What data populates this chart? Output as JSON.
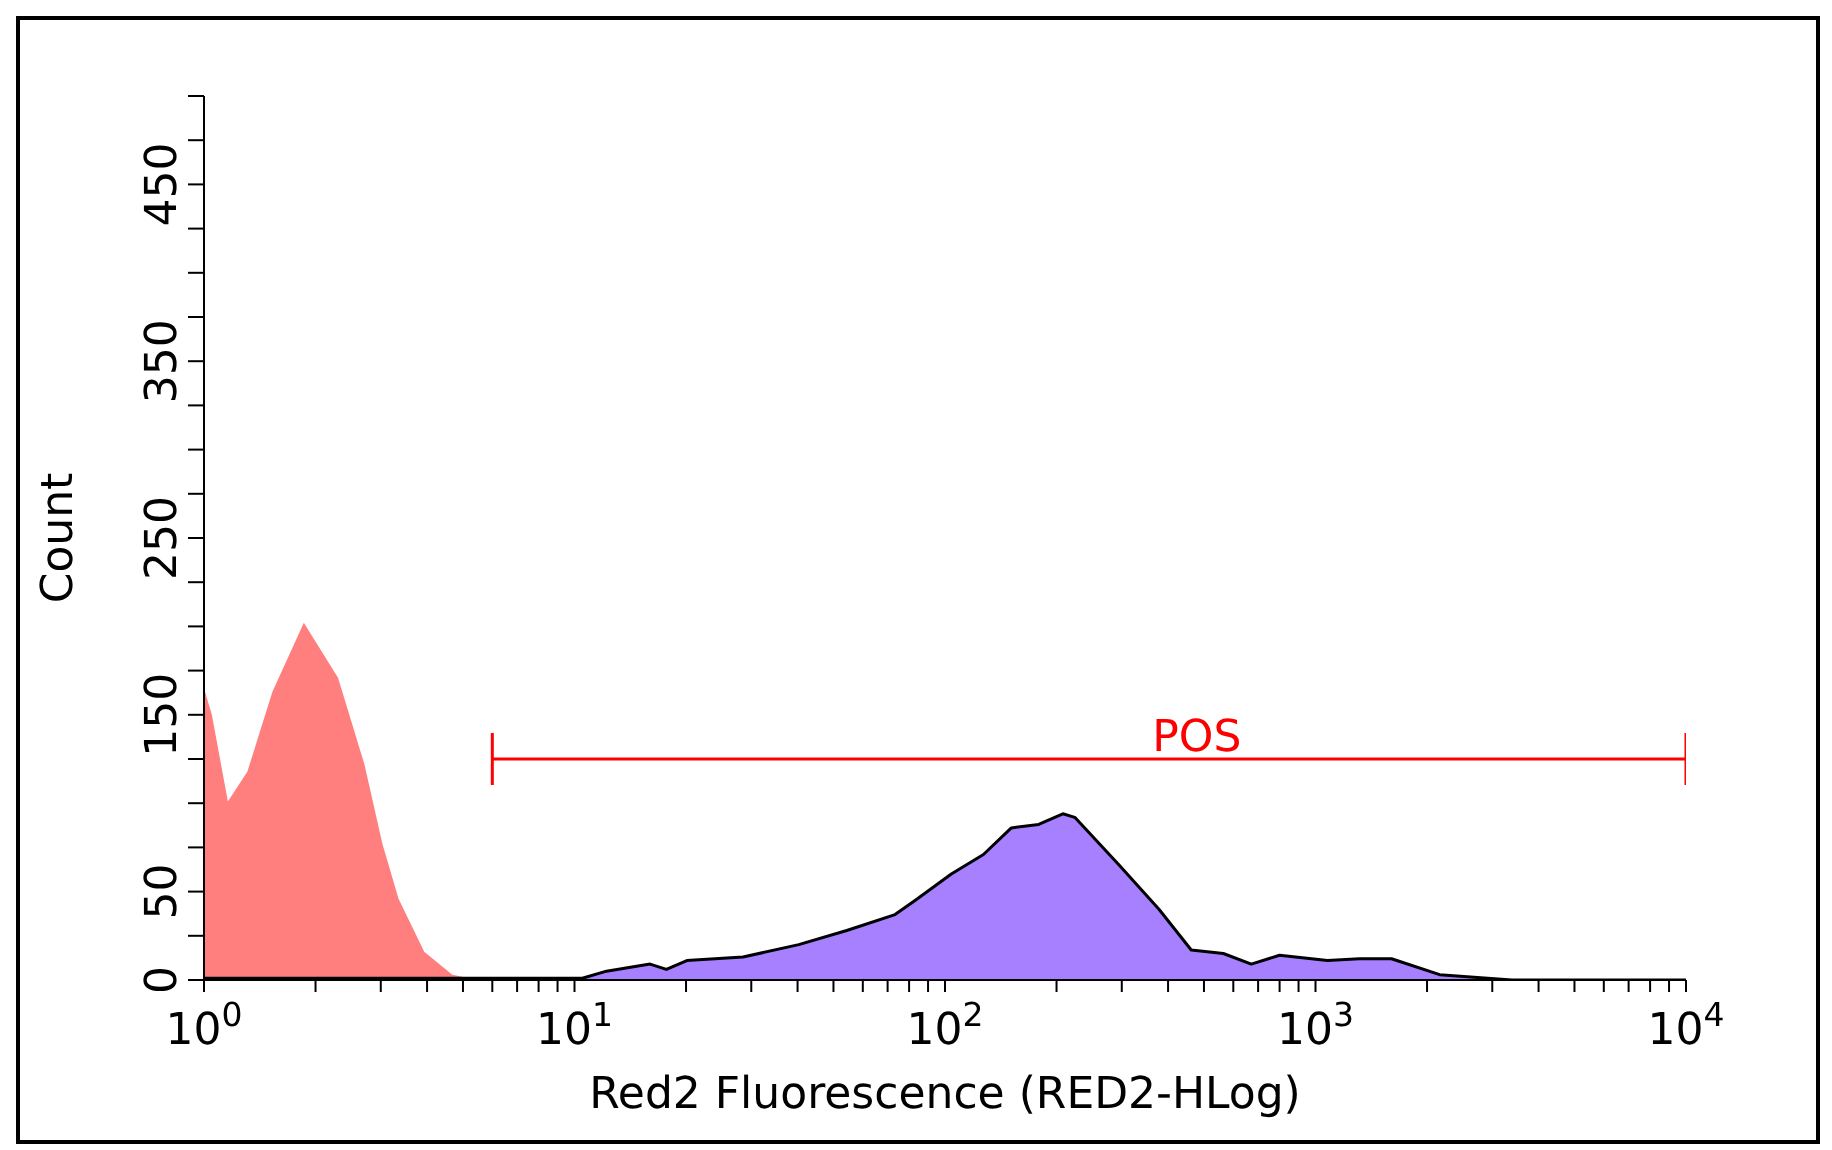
{
  "chart_data": {
    "type": "area",
    "xlabel": "Red2 Fluorescence (RED2-HLog)",
    "ylabel": "Count",
    "log": "x",
    "xlim": [
      1,
      10000
    ],
    "ylim": [
      0,
      500
    ],
    "xticks": [
      {
        "value": 1,
        "label": "10$^{0}$"
      },
      {
        "value": 2,
        "label": null
      },
      {
        "value": 3,
        "label": null
      },
      {
        "value": 4,
        "label": null
      },
      {
        "value": 5,
        "label": null
      },
      {
        "value": 6,
        "label": null
      },
      {
        "value": 7,
        "label": null
      },
      {
        "value": 8,
        "label": null
      },
      {
        "value": 9,
        "label": null
      },
      {
        "value": 10,
        "label": "10$^{1}$"
      },
      {
        "value": 20,
        "label": null
      },
      {
        "value": 30,
        "label": null
      },
      {
        "value": 40,
        "label": null
      },
      {
        "value": 50,
        "label": null
      },
      {
        "value": 60,
        "label": null
      },
      {
        "value": 70,
        "label": null
      },
      {
        "value": 80,
        "label": null
      },
      {
        "value": 90,
        "label": null
      },
      {
        "value": 100,
        "label": "10$^{2}$"
      },
      {
        "value": 200,
        "label": null
      },
      {
        "value": 300,
        "label": null
      },
      {
        "value": 400,
        "label": null
      },
      {
        "value": 500,
        "label": null
      },
      {
        "value": 600,
        "label": null
      },
      {
        "value": 700,
        "label": null
      },
      {
        "value": 800,
        "label": null
      },
      {
        "value": 900,
        "label": null
      },
      {
        "value": 1000,
        "label": "10$^{3}$"
      },
      {
        "value": 2000,
        "label": null
      },
      {
        "value": 3000,
        "label": null
      },
      {
        "value": 4000,
        "label": null
      },
      {
        "value": 5000,
        "label": null
      },
      {
        "value": 6000,
        "label": null
      },
      {
        "value": 7000,
        "label": null
      },
      {
        "value": 8000,
        "label": null
      },
      {
        "value": 9000,
        "label": null
      },
      {
        "value": 10000,
        "label": "10$^{4}$"
      }
    ],
    "yticks": [
      0,
      {
        "value": 25,
        "label": null
      },
      50,
      {
        "value": 75,
        "label": null
      },
      {
        "value": 100,
        "label": null
      },
      {
        "value": 125,
        "label": null
      },
      150,
      {
        "value": 175,
        "label": null
      },
      {
        "value": 200,
        "label": null
      },
      {
        "value": 225,
        "label": null
      },
      250,
      {
        "value": 275,
        "label": null
      },
      {
        "value": 300,
        "label": null
      },
      {
        "value": 325,
        "label": null
      },
      350,
      {
        "value": 375,
        "label": null
      },
      {
        "value": 400,
        "label": null
      },
      {
        "value": 425,
        "label": null
      },
      450,
      {
        "value": 475,
        "label": null
      },
      {
        "value": 500,
        "label": null
      }
    ],
    "series": [
      {
        "color": "#ff7f7f",
        "x": [
          1,
          1.05,
          1.16,
          1.31,
          1.53,
          1.86,
          2.3,
          2.71,
          3.03,
          3.35,
          3.93,
          4.68,
          5.5,
          10000
        ],
        "values": [
          165,
          150,
          101,
          118,
          163,
          202,
          171,
          122,
          77,
          46,
          16,
          3,
          0,
          0
        ]
      },
      {
        "type": "line",
        "name": "POS",
        "color": "#ff0000",
        "x": [
          6,
          10000
        ],
        "values": [
          125,
          125
        ]
      },
      {
        "color": "#a680ff",
        "x": [
          1,
          10.5,
          12.2,
          16,
          17.7,
          20.1,
          28.5,
          40.3,
          54.3,
          73.3,
          83,
          104,
          127,
          151,
          179,
          208,
          224,
          295,
          378,
          462,
          564,
          671,
          800,
          1077,
          1315,
          1604,
          2163,
          2917,
          3388,
          10000
        ],
        "values": [
          1,
          1,
          5,
          9,
          6,
          11,
          13,
          20,
          28,
          37,
          45,
          60,
          71,
          86,
          88,
          94,
          92,
          65,
          40,
          17,
          15,
          9,
          14,
          11,
          12,
          12,
          3,
          1,
          0,
          0
        ]
      }
    ]
  }
}
